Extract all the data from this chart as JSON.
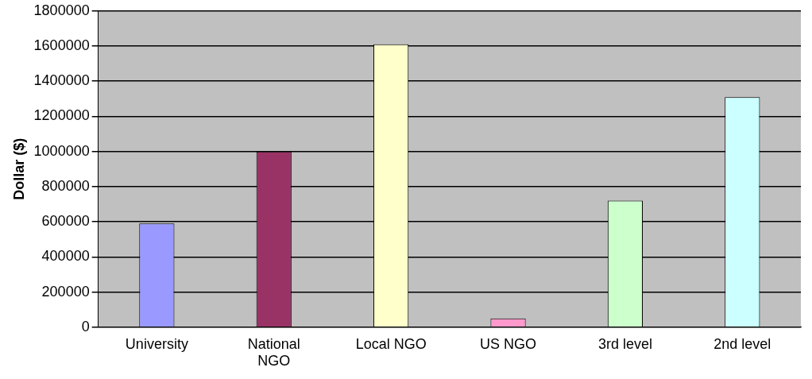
{
  "chart_data": {
    "type": "bar",
    "ylabel": "Dollar ($)",
    "categories": [
      "University",
      "National NGO",
      "Local NGO",
      "US NGO",
      "3rd level",
      "2nd level"
    ],
    "values": [
      590000,
      1000000,
      1610000,
      50000,
      720000,
      1310000
    ],
    "colors": [
      "#9999ff",
      "#993366",
      "#ffffcc",
      "#ff99cc",
      "#ccffcc",
      "#ccffff"
    ],
    "ylim": [
      0,
      1800000
    ],
    "yticks": [
      0,
      200000,
      400000,
      600000,
      800000,
      1000000,
      1200000,
      1400000,
      1600000,
      1800000
    ],
    "grid": "y",
    "legend": false
  }
}
